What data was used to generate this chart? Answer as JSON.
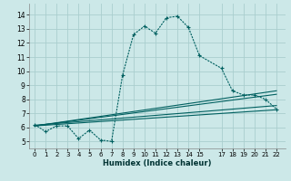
{
  "xlabel": "Humidex (Indice chaleur)",
  "x_ticks": [
    0,
    1,
    2,
    3,
    4,
    5,
    6,
    7,
    8,
    9,
    10,
    11,
    12,
    13,
    14,
    15,
    17,
    18,
    19,
    20,
    21,
    22
  ],
  "xlim": [
    -0.5,
    22.8
  ],
  "ylim": [
    4.5,
    14.8
  ],
  "y_ticks": [
    5,
    6,
    7,
    8,
    9,
    10,
    11,
    12,
    13,
    14
  ],
  "bg_color": "#cce8e8",
  "grid_color": "#aacece",
  "line_color": "#006060",
  "main_line": {
    "x": [
      0,
      1,
      2,
      3,
      4,
      5,
      6,
      7,
      8,
      9,
      10,
      11,
      12,
      13,
      14,
      15,
      17,
      18,
      19,
      20,
      21,
      22
    ],
    "y": [
      6.2,
      5.7,
      6.1,
      6.1,
      5.2,
      5.8,
      5.1,
      5.0,
      9.7,
      12.6,
      13.2,
      12.7,
      13.8,
      13.9,
      13.1,
      11.1,
      10.2,
      8.6,
      8.3,
      8.3,
      8.0,
      7.3
    ]
  },
  "reg_lines": [
    {
      "x": [
        0,
        22
      ],
      "y": [
        6.1,
        7.25
      ]
    },
    {
      "x": [
        0,
        22
      ],
      "y": [
        6.15,
        7.55
      ]
    },
    {
      "x": [
        0,
        22
      ],
      "y": [
        6.1,
        8.35
      ]
    },
    {
      "x": [
        0,
        22
      ],
      "y": [
        6.1,
        8.6
      ]
    }
  ]
}
